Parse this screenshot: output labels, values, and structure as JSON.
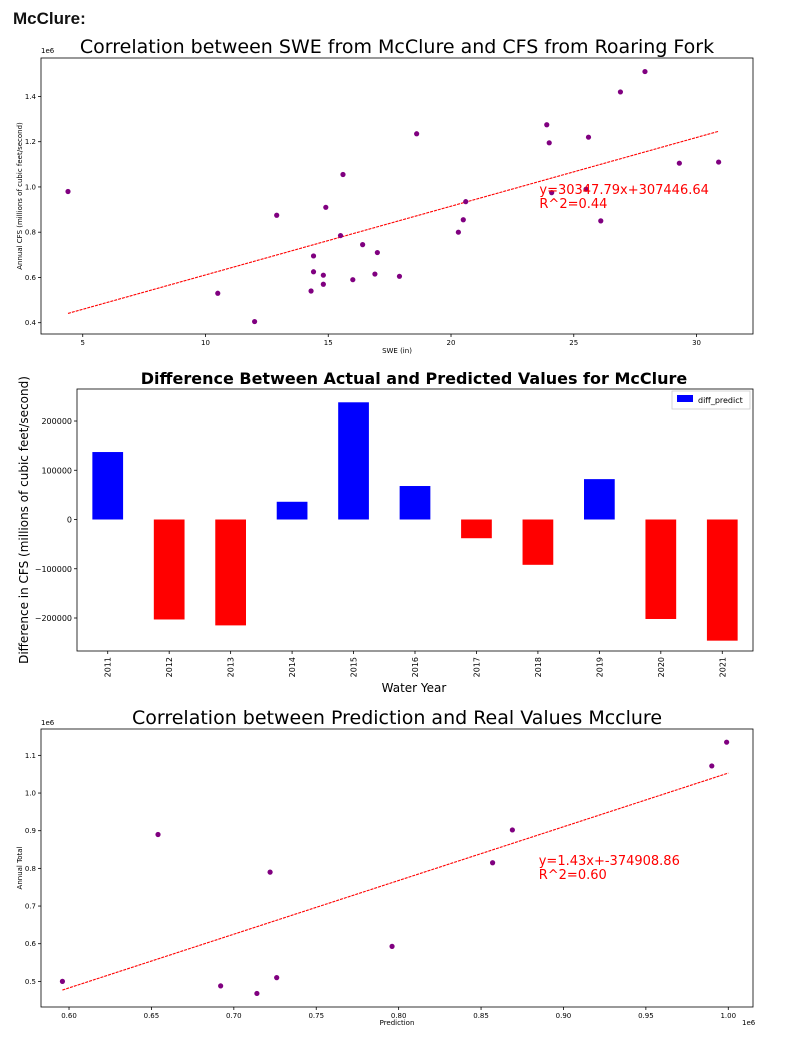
{
  "heading": "McClure:",
  "colors": {
    "scatter": "#800080",
    "fit_line": "#ff0000",
    "annotation": "#ff0000",
    "positive_bar": "#0000ff",
    "negative_bar": "#ff0000"
  },
  "chart_data": [
    {
      "type": "scatter",
      "title": "Correlation between SWE from McClure and CFS from Roaring Fork",
      "xlabel": "SWE (in)",
      "ylabel": "Annual CFS (millions of cubic feet/second)",
      "offset_label": "1e6",
      "xlim": [
        3.3,
        32.3
      ],
      "ylim": [
        0.35,
        1.57
      ],
      "xticks": [
        5,
        10,
        15,
        20,
        25,
        30
      ],
      "yticks": [
        0.4,
        0.6,
        0.8,
        1.0,
        1.2,
        1.4
      ],
      "ytick_labels": [
        "0.4",
        "0.6",
        "0.8",
        "1.0",
        "1.2",
        "1.4"
      ],
      "points": [
        [
          4.4,
          0.98
        ],
        [
          10.5,
          0.53
        ],
        [
          12.0,
          0.405
        ],
        [
          12.9,
          0.875
        ],
        [
          14.3,
          0.54
        ],
        [
          14.4,
          0.625
        ],
        [
          14.4,
          0.695
        ],
        [
          14.8,
          0.57
        ],
        [
          14.8,
          0.61
        ],
        [
          14.9,
          0.91
        ],
        [
          15.5,
          0.785
        ],
        [
          15.6,
          1.055
        ],
        [
          16.0,
          0.59
        ],
        [
          16.4,
          0.745
        ],
        [
          16.9,
          0.615
        ],
        [
          17.0,
          0.71
        ],
        [
          17.9,
          0.605
        ],
        [
          18.6,
          1.235
        ],
        [
          20.3,
          0.8
        ],
        [
          20.5,
          0.855
        ],
        [
          20.6,
          0.935
        ],
        [
          23.9,
          1.275
        ],
        [
          24.0,
          1.195
        ],
        [
          24.1,
          0.975
        ],
        [
          25.5,
          0.99
        ],
        [
          25.6,
          1.22
        ],
        [
          26.1,
          0.85
        ],
        [
          26.9,
          1.42
        ],
        [
          27.9,
          1.51
        ],
        [
          29.3,
          1.105
        ],
        [
          30.9,
          1.11
        ]
      ],
      "fit_line": {
        "x": [
          4.4,
          30.9
        ],
        "y": [
          0.441,
          1.246
        ]
      },
      "annotation": [
        "y=30347.79x+307446.64",
        "R^2=0.44"
      ],
      "annotation_pos": [
        23.6,
        0.93
      ]
    },
    {
      "type": "bar",
      "title": "Difference Between Actual and Predicted Values for McClure",
      "xlabel": "Water Year",
      "ylabel": "Difference in CFS (millions of cubic feet/second)",
      "ylim": [
        -267000,
        265000
      ],
      "yticks": [
        -200000,
        -100000,
        0,
        100000,
        200000
      ],
      "ytick_labels": [
        "−200000",
        "−100000",
        "0",
        "100000",
        "200000"
      ],
      "legend": {
        "label": "diff_predict",
        "position": "top-right"
      },
      "categories": [
        "2011",
        "2012",
        "2013",
        "2014",
        "2015",
        "2016",
        "2017",
        "2018",
        "2019",
        "2020",
        "2021"
      ],
      "series": [
        {
          "name": "diff_predict",
          "values": [
            137000,
            -203000,
            -215000,
            36000,
            238000,
            68000,
            -38000,
            -92000,
            82000,
            -202000,
            -246000
          ]
        }
      ]
    },
    {
      "type": "scatter",
      "title": "Correlation between Prediction and Real Values Mcclure",
      "xlabel": "Prediction",
      "ylabel": "Annual Total",
      "offset_label_y": "1e6",
      "offset_label_x": "1e6",
      "xlim": [
        0.583,
        1.015
      ],
      "ylim": [
        0.432,
        1.17
      ],
      "xticks": [
        0.6,
        0.65,
        0.7,
        0.75,
        0.8,
        0.85,
        0.9,
        0.95,
        1.0
      ],
      "xtick_labels": [
        "0.60",
        "0.65",
        "0.70",
        "0.75",
        "0.80",
        "0.85",
        "0.90",
        "0.95",
        "1.00"
      ],
      "yticks": [
        0.5,
        0.6,
        0.7,
        0.8,
        0.9,
        1.0,
        1.1
      ],
      "ytick_labels": [
        "0.5",
        "0.6",
        "0.7",
        "0.8",
        "0.9",
        "1.0",
        "1.1"
      ],
      "points": [
        [
          0.596,
          0.5
        ],
        [
          0.654,
          0.89
        ],
        [
          0.692,
          0.488
        ],
        [
          0.714,
          0.468
        ],
        [
          0.722,
          0.79
        ],
        [
          0.726,
          0.51
        ],
        [
          0.796,
          0.593
        ],
        [
          0.857,
          0.815
        ],
        [
          0.869,
          0.902
        ],
        [
          0.99,
          1.072
        ],
        [
          0.999,
          1.135
        ]
      ],
      "fit_line": {
        "x": [
          0.596,
          1.0
        ],
        "y": [
          0.477,
          1.053
        ]
      },
      "annotation": [
        "y=1.43x+-374908.86",
        "R^2=0.60"
      ],
      "annotation_pos": [
        0.885,
        0.785
      ]
    }
  ]
}
